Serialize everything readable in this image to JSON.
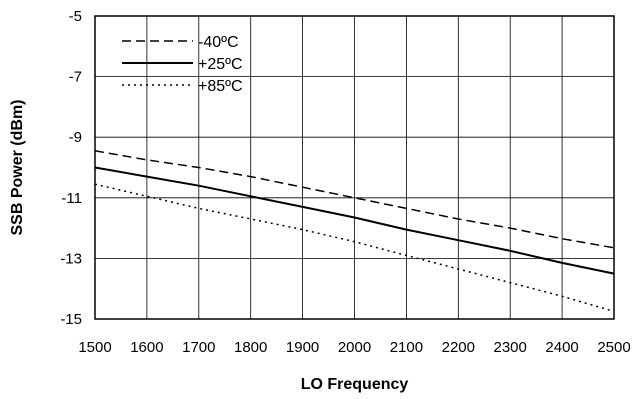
{
  "chart_data": {
    "type": "line",
    "xlabel": "LO Frequency",
    "ylabel": "SSB Power (dBm)",
    "xlim": [
      1500,
      2500
    ],
    "ylim": [
      -15,
      -5
    ],
    "xticks": [
      1500,
      1600,
      1700,
      1800,
      1900,
      2000,
      2100,
      2200,
      2300,
      2400,
      2500
    ],
    "yticks": [
      -5,
      -7,
      -9,
      -11,
      -13,
      -15
    ],
    "grid": true,
    "legend": "top-left",
    "series": [
      {
        "name": "-40ºC",
        "style": "dashed",
        "color": "#000000",
        "x": [
          1500,
          1600,
          1700,
          1800,
          1900,
          2000,
          2100,
          2200,
          2300,
          2400,
          2500
        ],
        "y": [
          -9.45,
          -9.75,
          -10.0,
          -10.3,
          -10.65,
          -11.0,
          -11.35,
          -11.7,
          -12.0,
          -12.35,
          -12.65
        ]
      },
      {
        "name": "+25ºC",
        "style": "solid",
        "color": "#000000",
        "x": [
          1500,
          1600,
          1700,
          1800,
          1900,
          2000,
          2100,
          2200,
          2300,
          2400,
          2500
        ],
        "y": [
          -10.0,
          -10.3,
          -10.6,
          -10.95,
          -11.3,
          -11.65,
          -12.05,
          -12.4,
          -12.75,
          -13.15,
          -13.5
        ]
      },
      {
        "name": "+85ºC",
        "style": "dotted",
        "color": "#000000",
        "x": [
          1500,
          1600,
          1700,
          1800,
          1900,
          2000,
          2100,
          2200,
          2300,
          2400,
          2500
        ],
        "y": [
          -10.55,
          -10.95,
          -11.35,
          -11.7,
          -12.05,
          -12.45,
          -12.9,
          -13.35,
          -13.8,
          -14.25,
          -14.75
        ]
      }
    ]
  }
}
